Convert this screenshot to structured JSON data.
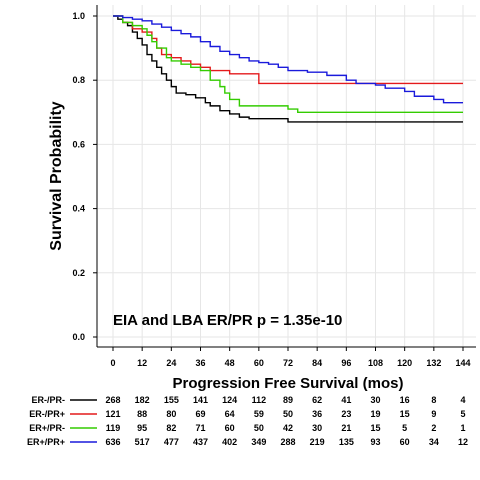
{
  "chart_data": {
    "type": "line",
    "title": "",
    "xlabel": "Progression Free Survival (mos)",
    "ylabel": "Survival Probability",
    "xlim": [
      0,
      144
    ],
    "ylim": [
      0,
      1.0
    ],
    "xticks": [
      "0",
      "12",
      "24",
      "36",
      "48",
      "60",
      "72",
      "84",
      "96",
      "108",
      "120",
      "132",
      "144"
    ],
    "yticks": [
      "0.0",
      "0.2",
      "0.4",
      "0.6",
      "0.8",
      "1.0"
    ],
    "grid": true,
    "legend": "none",
    "annotation": "EIA and LBA ER/PR  p = 1.35e-10",
    "series": [
      {
        "name": "ER-/PR-",
        "color": "#000000",
        "steps": [
          [
            0,
            1.0
          ],
          [
            2,
            0.99
          ],
          [
            4,
            0.98
          ],
          [
            6,
            0.97
          ],
          [
            8,
            0.95
          ],
          [
            10,
            0.93
          ],
          [
            12,
            0.91
          ],
          [
            14,
            0.88
          ],
          [
            16,
            0.86
          ],
          [
            18,
            0.84
          ],
          [
            20,
            0.82
          ],
          [
            22,
            0.8
          ],
          [
            24,
            0.78
          ],
          [
            26,
            0.76
          ],
          [
            30,
            0.755
          ],
          [
            34,
            0.745
          ],
          [
            38,
            0.73
          ],
          [
            40,
            0.72
          ],
          [
            44,
            0.705
          ],
          [
            48,
            0.695
          ],
          [
            52,
            0.685
          ],
          [
            56,
            0.68
          ],
          [
            72,
            0.67
          ],
          [
            144,
            0.67
          ]
        ]
      },
      {
        "name": "ER-/PR+",
        "color": "#e41a1c",
        "steps": [
          [
            0,
            1.0
          ],
          [
            4,
            0.98
          ],
          [
            8,
            0.96
          ],
          [
            12,
            0.95
          ],
          [
            16,
            0.93
          ],
          [
            18,
            0.9
          ],
          [
            20,
            0.88
          ],
          [
            24,
            0.87
          ],
          [
            28,
            0.86
          ],
          [
            32,
            0.85
          ],
          [
            36,
            0.84
          ],
          [
            40,
            0.83
          ],
          [
            48,
            0.82
          ],
          [
            60,
            0.79
          ],
          [
            144,
            0.79
          ]
        ]
      },
      {
        "name": "ER+/PR-",
        "color": "#33cc00",
        "steps": [
          [
            0,
            1.0
          ],
          [
            4,
            0.98
          ],
          [
            8,
            0.97
          ],
          [
            12,
            0.96
          ],
          [
            14,
            0.94
          ],
          [
            16,
            0.92
          ],
          [
            18,
            0.9
          ],
          [
            22,
            0.87
          ],
          [
            24,
            0.86
          ],
          [
            28,
            0.85
          ],
          [
            32,
            0.84
          ],
          [
            36,
            0.83
          ],
          [
            40,
            0.8
          ],
          [
            44,
            0.78
          ],
          [
            46,
            0.76
          ],
          [
            48,
            0.74
          ],
          [
            52,
            0.72
          ],
          [
            72,
            0.71
          ],
          [
            76,
            0.7
          ],
          [
            144,
            0.7
          ]
        ]
      },
      {
        "name": "ER+/PR+",
        "color": "#1a1adb",
        "steps": [
          [
            0,
            1.0
          ],
          [
            4,
            0.995
          ],
          [
            8,
            0.99
          ],
          [
            12,
            0.985
          ],
          [
            16,
            0.975
          ],
          [
            20,
            0.965
          ],
          [
            24,
            0.955
          ],
          [
            28,
            0.945
          ],
          [
            32,
            0.935
          ],
          [
            36,
            0.92
          ],
          [
            40,
            0.905
          ],
          [
            44,
            0.89
          ],
          [
            48,
            0.88
          ],
          [
            52,
            0.87
          ],
          [
            56,
            0.86
          ],
          [
            60,
            0.855
          ],
          [
            64,
            0.85
          ],
          [
            68,
            0.84
          ],
          [
            72,
            0.83
          ],
          [
            80,
            0.825
          ],
          [
            88,
            0.815
          ],
          [
            96,
            0.8
          ],
          [
            100,
            0.79
          ],
          [
            108,
            0.785
          ],
          [
            112,
            0.775
          ],
          [
            120,
            0.765
          ],
          [
            124,
            0.75
          ],
          [
            132,
            0.74
          ],
          [
            136,
            0.73
          ],
          [
            144,
            0.73
          ]
        ]
      }
    ],
    "risk_table": {
      "times": [
        0,
        12,
        24,
        36,
        48,
        60,
        72,
        84,
        96,
        108,
        120,
        132,
        144
      ],
      "rows": [
        {
          "label": "ER-/PR-",
          "color": "#000000",
          "counts": [
            "268",
            "182",
            "155",
            "141",
            "124",
            "112",
            "89",
            "62",
            "41",
            "30",
            "16",
            "8",
            "4"
          ]
        },
        {
          "label": "ER-/PR+",
          "color": "#e41a1c",
          "counts": [
            "121",
            "88",
            "80",
            "69",
            "64",
            "59",
            "50",
            "36",
            "23",
            "19",
            "15",
            "9",
            "5"
          ]
        },
        {
          "label": "ER+/PR-",
          "color": "#33cc00",
          "counts": [
            "119",
            "95",
            "82",
            "71",
            "60",
            "50",
            "42",
            "30",
            "21",
            "15",
            "5",
            "2",
            "1"
          ]
        },
        {
          "label": "ER+/PR+",
          "color": "#1a1adb",
          "counts": [
            "636",
            "517",
            "477",
            "437",
            "402",
            "349",
            "288",
            "219",
            "135",
            "93",
            "60",
            "34",
            "12"
          ]
        }
      ]
    }
  }
}
